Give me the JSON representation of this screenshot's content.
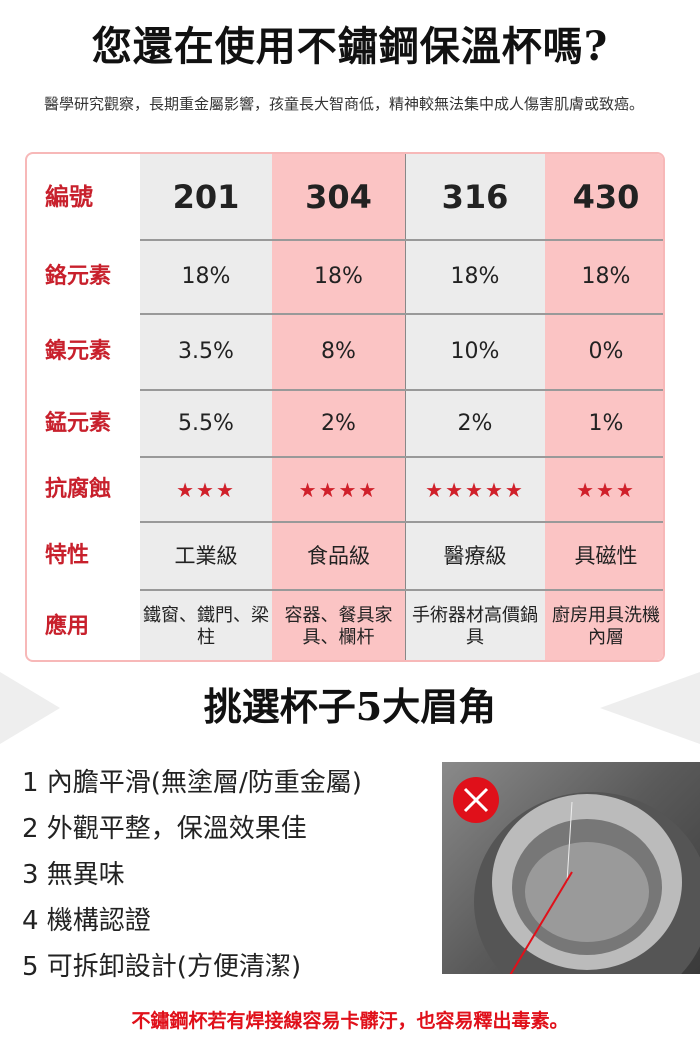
{
  "title": "您還在使用不鏽鋼保溫杯嗎?",
  "intro": "醫學研究觀察，長期重金屬影響，孩童長大智商低，精神較無法集中成人傷害肌膚或致癌。",
  "table": {
    "header": {
      "label": "編號",
      "values": [
        "201",
        "304",
        "316",
        "430"
      ]
    },
    "rows": [
      {
        "label": "鉻元素",
        "values": [
          "18%",
          "18%",
          "18%",
          "18%"
        ]
      },
      {
        "label": "鎳元素",
        "values": [
          "3.5%",
          "8%",
          "10%",
          "0%"
        ]
      },
      {
        "label": "錳元素",
        "values": [
          "5.5%",
          "2%",
          "2%",
          "1%"
        ]
      },
      {
        "label": "抗腐蝕",
        "values": [
          "★★★",
          "★★★★",
          "★★★★★",
          "★★★"
        ]
      },
      {
        "label": "特性",
        "values": [
          "工業級",
          "食品級",
          "醫療級",
          "具磁性"
        ]
      },
      {
        "label": "應用",
        "values": [
          "鐵窗、鐵門、梁柱",
          "容器、餐具家具、欄杆",
          "手術器材高價鍋具",
          "廚房用具洗機內層"
        ]
      }
    ],
    "column_colors": [
      "#ececec",
      "#fbc4c4",
      "#ececec",
      "#fbc4c4"
    ],
    "label_color": "#c8202c"
  },
  "subtitle": "挑選杯子5大眉角",
  "tips": [
    "1  內膽平滑(無塗層/防重金屬)",
    "2  外觀平整，保溫效果佳",
    "3  無異味",
    "4  機構認證",
    "5  可拆卸設計(方便清潔)"
  ],
  "photo": {
    "icon": "x-circle-icon",
    "icon_color": "#e0101a"
  },
  "warning": "不鏽鋼杯若有焊接線容易卡髒汙，也容易釋出毒素。"
}
